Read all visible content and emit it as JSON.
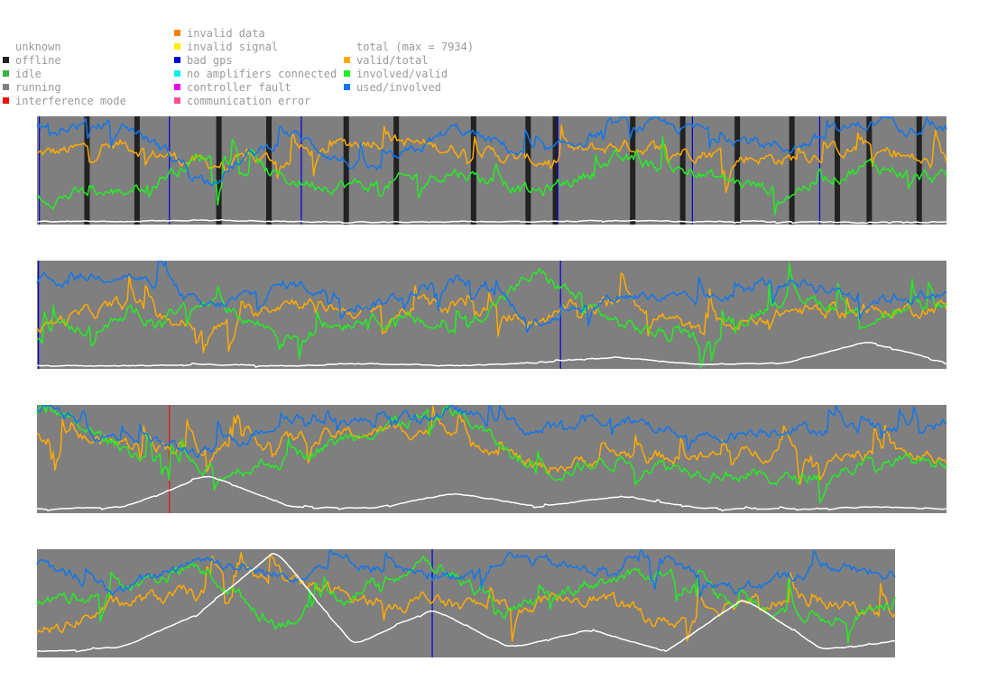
{
  "legend": {
    "status": [
      {
        "label": "unknown",
        "color": ""
      },
      {
        "label": "offline",
        "color": "#222222"
      },
      {
        "label": "idle",
        "color": "#3cb043"
      },
      {
        "label": "running",
        "color": "#7f7f7f"
      },
      {
        "label": "interference mode",
        "color": "#ee1111"
      }
    ],
    "faults": [
      {
        "label": "invalid data",
        "color": "#ff7f00"
      },
      {
        "label": "invalid signal",
        "color": "#ffee00"
      },
      {
        "label": "bad gps",
        "color": "#0000dd"
      },
      {
        "label": "no amplifiers connected",
        "color": "#00eeee"
      },
      {
        "label": "controller fault",
        "color": "#ee00ee"
      },
      {
        "label": "communication error",
        "color": "#ff4f8f"
      }
    ],
    "metrics": [
      {
        "label": "total (max = 7934)",
        "color": ""
      },
      {
        "label": "valid/total",
        "color": "#ffaa00"
      },
      {
        "label": "involved/valid",
        "color": "#22ee22"
      },
      {
        "label": "used/involved",
        "color": "#1177ee"
      }
    ]
  },
  "chart_data": {
    "type": "line",
    "title": "",
    "total_max": 7934,
    "panels": 4,
    "background_status": "running",
    "series": [
      {
        "name": "total",
        "color": "#ffffff"
      },
      {
        "name": "valid/total",
        "color": "#ffaa00"
      },
      {
        "name": "involved/valid",
        "color": "#22ee22"
      },
      {
        "name": "used/involved",
        "color": "#1177ee"
      }
    ],
    "panel_data": [
      {
        "offline_markers": [
          0.055,
          0.11,
          0.2,
          0.255,
          0.34,
          0.395,
          0.48,
          0.54,
          0.57,
          0.655,
          0.71,
          0.77,
          0.83,
          0.88,
          0.915,
          0.97
        ],
        "bad_gps_markers": [
          0.002,
          0.145,
          0.29,
          0.572,
          0.72,
          0.86
        ],
        "interference_markers": [],
        "total": [
          0.02,
          0.02,
          0.03,
          0.02,
          0.01,
          0.02,
          0.02,
          0.03,
          0.02,
          0.02,
          0.01,
          0.02
        ],
        "valid_total": [
          0.65,
          0.75,
          0.55,
          0.62,
          0.8,
          0.7,
          0.58,
          0.74,
          0.68,
          0.6,
          0.72,
          0.5
        ],
        "involved_valid": [
          0.25,
          0.3,
          0.65,
          0.4,
          0.35,
          0.5,
          0.28,
          0.6,
          0.45,
          0.3,
          0.55,
          0.4
        ],
        "used_involved": [
          0.9,
          0.95,
          0.4,
          0.85,
          0.45,
          0.9,
          0.6,
          0.95,
          0.88,
          0.7,
          0.95,
          0.9
        ]
      },
      {
        "offline_markers": [],
        "bad_gps_markers": [
          0.001,
          0.575
        ],
        "interference_markers": [],
        "total": [
          0.02,
          0.02,
          0.03,
          0.02,
          0.04,
          0.02,
          0.05,
          0.1,
          0.03,
          0.05,
          0.25,
          0.03
        ],
        "valid_total": [
          0.4,
          0.6,
          0.35,
          0.65,
          0.5,
          0.6,
          0.45,
          0.7,
          0.3,
          0.55,
          0.5,
          0.6
        ],
        "involved_valid": [
          0.3,
          0.45,
          0.6,
          0.3,
          0.5,
          0.35,
          0.9,
          0.4,
          0.25,
          0.7,
          0.5,
          0.55
        ],
        "used_involved": [
          0.8,
          0.9,
          0.55,
          0.8,
          0.6,
          0.85,
          0.45,
          0.7,
          0.6,
          0.85,
          0.65,
          0.7
        ]
      },
      {
        "offline_markers": [],
        "bad_gps_markers": [],
        "interference_markers": [
          0.145
        ],
        "total": [
          0.03,
          0.05,
          0.35,
          0.05,
          0.04,
          0.18,
          0.05,
          0.15,
          0.04,
          0.03,
          0.05,
          0.03
        ],
        "valid_total": [
          0.7,
          0.65,
          0.6,
          0.7,
          0.75,
          0.8,
          0.4,
          0.55,
          0.5,
          0.6,
          0.55,
          0.5
        ],
        "involved_valid": [
          0.95,
          0.6,
          0.35,
          0.5,
          0.8,
          0.95,
          0.35,
          0.5,
          0.4,
          0.3,
          0.45,
          0.5
        ],
        "used_involved": [
          0.95,
          0.7,
          0.55,
          0.9,
          0.85,
          0.95,
          0.75,
          0.9,
          0.7,
          0.8,
          0.75,
          0.85
        ]
      },
      {
        "offline_markers": [],
        "bad_gps_markers": [
          0.46
        ],
        "interference_markers": [],
        "total": [
          0.05,
          0.08,
          0.4,
          1.0,
          0.1,
          0.45,
          0.08,
          0.25,
          0.05,
          0.55,
          0.06,
          0.15
        ],
        "valid_total": [
          0.2,
          0.5,
          0.6,
          0.75,
          0.55,
          0.5,
          0.45,
          0.6,
          0.3,
          0.55,
          0.5,
          0.4
        ],
        "involved_valid": [
          0.5,
          0.65,
          0.85,
          0.3,
          0.6,
          0.9,
          0.4,
          0.7,
          0.8,
          0.5,
          0.35,
          0.55
        ],
        "used_involved": [
          0.85,
          0.6,
          0.95,
          0.75,
          0.9,
          0.7,
          0.95,
          0.8,
          0.9,
          0.6,
          0.85,
          0.75
        ]
      }
    ]
  }
}
